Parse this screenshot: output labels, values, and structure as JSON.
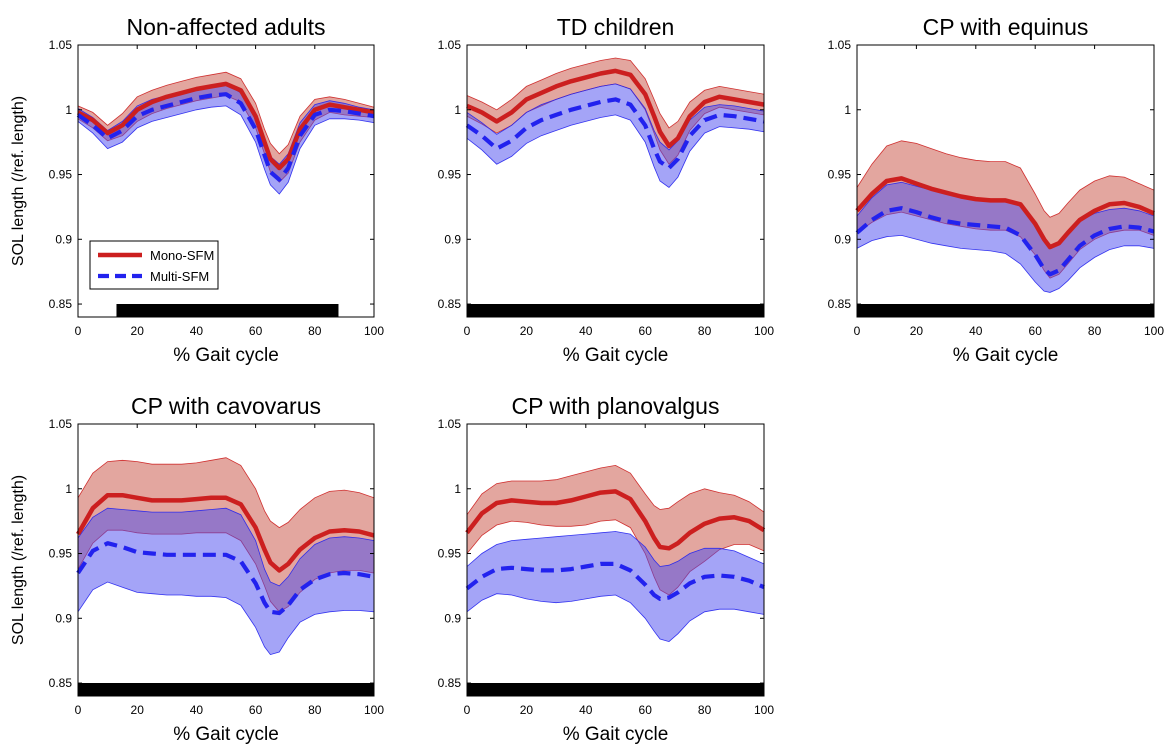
{
  "legend": {
    "mono_label": "Mono-SFM",
    "multi_label": "Multi-SFM"
  },
  "colors": {
    "mono_line": "#cc1f1f",
    "mono_band": "#c0392b",
    "multi_line": "#2222ee",
    "multi_band": "#4a4af0",
    "bar": "#000000"
  },
  "chart_data": [
    {
      "type": "line",
      "title": "Non-affected adults",
      "xlabel": "% Gait cycle",
      "ylabel": "SOL length (/ref. length)",
      "xlim": [
        0,
        100
      ],
      "ylim": [
        0.84,
        1.05
      ],
      "xticks": [
        "0",
        "20",
        "40",
        "60",
        "80",
        "100"
      ],
      "yticks": [
        "0.85",
        "0.9",
        "0.95",
        "1",
        "1.05"
      ],
      "legend_position": "lower-left",
      "bar": [
        13,
        88
      ],
      "x": [
        0,
        5,
        10,
        15,
        20,
        25,
        30,
        35,
        40,
        45,
        50,
        55,
        60,
        63,
        65,
        68,
        71,
        75,
        80,
        85,
        90,
        95,
        100
      ],
      "series": [
        {
          "name": "Mono-SFM",
          "style": "solid",
          "values": [
            0.998,
            0.992,
            0.982,
            0.988,
            1.0,
            1.006,
            1.01,
            1.013,
            1.016,
            1.018,
            1.02,
            1.015,
            0.995,
            0.975,
            0.962,
            0.955,
            0.962,
            0.985,
            1.0,
            1.004,
            1.002,
            1.0,
            0.998
          ],
          "upper": [
            1.003,
            0.998,
            0.988,
            0.997,
            1.01,
            1.015,
            1.019,
            1.022,
            1.025,
            1.027,
            1.029,
            1.024,
            1.005,
            0.985,
            0.974,
            0.966,
            0.973,
            0.995,
            1.008,
            1.01,
            1.008,
            1.005,
            1.002
          ],
          "lower": [
            0.993,
            0.986,
            0.976,
            0.98,
            0.991,
            0.997,
            1.001,
            1.004,
            1.007,
            1.009,
            1.011,
            1.006,
            0.986,
            0.966,
            0.952,
            0.944,
            0.951,
            0.975,
            0.992,
            0.998,
            0.996,
            0.995,
            0.994
          ]
        },
        {
          "name": "Multi-SFM",
          "style": "dashed",
          "values": [
            0.996,
            0.988,
            0.978,
            0.984,
            0.995,
            1.0,
            1.003,
            1.006,
            1.009,
            1.011,
            1.012,
            1.005,
            0.985,
            0.965,
            0.952,
            0.946,
            0.955,
            0.98,
            0.996,
            1.0,
            0.999,
            0.997,
            0.995
          ],
          "upper": [
            1.001,
            0.994,
            0.984,
            0.991,
            1.003,
            1.008,
            1.011,
            1.014,
            1.017,
            1.019,
            1.02,
            1.013,
            0.995,
            0.975,
            0.964,
            0.958,
            0.966,
            0.99,
            1.004,
            1.007,
            1.005,
            1.002,
            1.0
          ],
          "lower": [
            0.991,
            0.982,
            0.97,
            0.975,
            0.986,
            0.991,
            0.994,
            0.997,
            1.0,
            1.002,
            1.003,
            0.996,
            0.975,
            0.954,
            0.942,
            0.935,
            0.944,
            0.97,
            0.988,
            0.993,
            0.993,
            0.992,
            0.99
          ]
        }
      ]
    },
    {
      "type": "line",
      "title": "TD children",
      "xlabel": "% Gait cycle",
      "ylabel": "",
      "xlim": [
        0,
        100
      ],
      "ylim": [
        0.84,
        1.05
      ],
      "xticks": [
        "0",
        "20",
        "40",
        "60",
        "80",
        "100"
      ],
      "yticks": [
        "0.85",
        "0.9",
        "0.95",
        "1",
        "1.05"
      ],
      "bar": [
        0,
        100
      ],
      "x": [
        0,
        5,
        10,
        15,
        20,
        25,
        30,
        35,
        40,
        45,
        50,
        55,
        60,
        63,
        65,
        68,
        71,
        75,
        80,
        85,
        90,
        95,
        100
      ],
      "series": [
        {
          "name": "Mono-SFM",
          "style": "solid",
          "values": [
            1.003,
            0.998,
            0.991,
            0.998,
            1.008,
            1.013,
            1.018,
            1.022,
            1.025,
            1.028,
            1.03,
            1.027,
            1.012,
            0.995,
            0.983,
            0.972,
            0.978,
            0.995,
            1.006,
            1.01,
            1.008,
            1.006,
            1.004
          ],
          "upper": [
            1.011,
            1.006,
            1.0,
            1.008,
            1.018,
            1.023,
            1.028,
            1.032,
            1.035,
            1.038,
            1.04,
            1.038,
            1.024,
            1.008,
            0.997,
            0.986,
            0.991,
            1.006,
            1.015,
            1.018,
            1.016,
            1.014,
            1.012
          ],
          "lower": [
            0.995,
            0.989,
            0.982,
            0.988,
            0.998,
            1.003,
            1.008,
            1.012,
            1.015,
            1.018,
            1.02,
            1.016,
            1.0,
            0.982,
            0.969,
            0.958,
            0.965,
            0.984,
            0.997,
            1.002,
            1.0,
            0.998,
            0.996
          ]
        },
        {
          "name": "Multi-SFM",
          "style": "dashed",
          "values": [
            0.988,
            0.98,
            0.97,
            0.976,
            0.986,
            0.992,
            0.996,
            1.0,
            1.003,
            1.006,
            1.008,
            1.004,
            0.988,
            0.97,
            0.96,
            0.955,
            0.962,
            0.98,
            0.992,
            0.996,
            0.995,
            0.993,
            0.991
          ],
          "upper": [
            0.998,
            0.99,
            0.981,
            0.988,
            0.998,
            1.004,
            1.008,
            1.012,
            1.015,
            1.018,
            1.02,
            1.016,
            1.001,
            0.984,
            0.975,
            0.969,
            0.976,
            0.992,
            1.002,
            1.004,
            1.003,
            1.001,
            0.999
          ],
          "lower": [
            0.978,
            0.969,
            0.958,
            0.964,
            0.974,
            0.98,
            0.984,
            0.988,
            0.991,
            0.994,
            0.996,
            0.992,
            0.975,
            0.956,
            0.945,
            0.94,
            0.948,
            0.968,
            0.982,
            0.987,
            0.986,
            0.985,
            0.983
          ]
        }
      ]
    },
    {
      "type": "line",
      "title": "CP with equinus",
      "xlabel": "% Gait cycle",
      "ylabel": "",
      "xlim": [
        0,
        100
      ],
      "ylim": [
        0.84,
        1.05
      ],
      "xticks": [
        "0",
        "20",
        "40",
        "60",
        "80",
        "100"
      ],
      "yticks": [
        "0.85",
        "0.9",
        "0.95",
        "1",
        "1.05"
      ],
      "bar": [
        0,
        100
      ],
      "x": [
        0,
        5,
        10,
        15,
        20,
        25,
        30,
        35,
        40,
        45,
        50,
        55,
        60,
        63,
        65,
        68,
        71,
        75,
        80,
        85,
        90,
        95,
        100
      ],
      "series": [
        {
          "name": "Mono-SFM",
          "style": "solid",
          "values": [
            0.922,
            0.935,
            0.945,
            0.947,
            0.943,
            0.939,
            0.936,
            0.933,
            0.931,
            0.93,
            0.93,
            0.927,
            0.912,
            0.9,
            0.894,
            0.897,
            0.905,
            0.915,
            0.922,
            0.927,
            0.928,
            0.925,
            0.92
          ],
          "upper": [
            0.94,
            0.958,
            0.972,
            0.976,
            0.974,
            0.97,
            0.966,
            0.963,
            0.961,
            0.96,
            0.96,
            0.955,
            0.935,
            0.922,
            0.917,
            0.92,
            0.928,
            0.938,
            0.945,
            0.949,
            0.948,
            0.943,
            0.938
          ],
          "lower": [
            0.905,
            0.913,
            0.919,
            0.921,
            0.918,
            0.915,
            0.912,
            0.91,
            0.908,
            0.907,
            0.907,
            0.902,
            0.888,
            0.876,
            0.87,
            0.873,
            0.881,
            0.892,
            0.9,
            0.905,
            0.907,
            0.907,
            0.903
          ]
        },
        {
          "name": "Multi-SFM",
          "style": "dashed",
          "values": [
            0.905,
            0.915,
            0.922,
            0.924,
            0.921,
            0.917,
            0.914,
            0.912,
            0.911,
            0.91,
            0.909,
            0.903,
            0.888,
            0.877,
            0.873,
            0.876,
            0.884,
            0.895,
            0.903,
            0.908,
            0.91,
            0.909,
            0.906
          ],
          "upper": [
            0.918,
            0.932,
            0.942,
            0.944,
            0.941,
            0.938,
            0.935,
            0.933,
            0.932,
            0.931,
            0.931,
            0.926,
            0.91,
            0.898,
            0.893,
            0.896,
            0.904,
            0.914,
            0.92,
            0.923,
            0.924,
            0.922,
            0.918
          ],
          "lower": [
            0.893,
            0.899,
            0.902,
            0.903,
            0.9,
            0.897,
            0.895,
            0.893,
            0.892,
            0.891,
            0.889,
            0.881,
            0.867,
            0.86,
            0.859,
            0.862,
            0.868,
            0.878,
            0.886,
            0.892,
            0.895,
            0.895,
            0.893
          ]
        }
      ]
    },
    {
      "type": "line",
      "title": "CP with cavovarus",
      "xlabel": "% Gait cycle",
      "ylabel": "SOL length (/ref. length)",
      "xlim": [
        0,
        100
      ],
      "ylim": [
        0.84,
        1.05
      ],
      "xticks": [
        "0",
        "20",
        "40",
        "60",
        "80",
        "100"
      ],
      "yticks": [
        "0.85",
        "0.9",
        "0.95",
        "1",
        "1.05"
      ],
      "bar": [
        0,
        100
      ],
      "x": [
        0,
        5,
        10,
        15,
        20,
        25,
        30,
        35,
        40,
        45,
        50,
        55,
        60,
        63,
        65,
        68,
        71,
        75,
        80,
        85,
        90,
        95,
        100
      ],
      "series": [
        {
          "name": "Mono-SFM",
          "style": "solid",
          "values": [
            0.965,
            0.985,
            0.995,
            0.995,
            0.993,
            0.991,
            0.991,
            0.991,
            0.992,
            0.993,
            0.993,
            0.988,
            0.97,
            0.953,
            0.943,
            0.937,
            0.942,
            0.953,
            0.962,
            0.967,
            0.968,
            0.967,
            0.964
          ],
          "upper": [
            0.993,
            1.012,
            1.021,
            1.022,
            1.021,
            1.019,
            1.019,
            1.019,
            1.02,
            1.022,
            1.024,
            1.018,
            1.0,
            0.983,
            0.975,
            0.97,
            0.974,
            0.984,
            0.993,
            0.998,
            0.999,
            0.997,
            0.993
          ],
          "lower": [
            0.938,
            0.958,
            0.968,
            0.968,
            0.966,
            0.965,
            0.965,
            0.965,
            0.966,
            0.966,
            0.966,
            0.96,
            0.942,
            0.925,
            0.913,
            0.905,
            0.909,
            0.92,
            0.93,
            0.935,
            0.937,
            0.937,
            0.935
          ]
        },
        {
          "name": "Multi-SFM",
          "style": "dashed",
          "values": [
            0.935,
            0.952,
            0.958,
            0.955,
            0.951,
            0.95,
            0.949,
            0.949,
            0.949,
            0.949,
            0.949,
            0.944,
            0.927,
            0.912,
            0.905,
            0.904,
            0.91,
            0.922,
            0.93,
            0.934,
            0.935,
            0.934,
            0.932
          ],
          "upper": [
            0.962,
            0.978,
            0.985,
            0.984,
            0.983,
            0.982,
            0.982,
            0.982,
            0.983,
            0.984,
            0.985,
            0.98,
            0.96,
            0.938,
            0.928,
            0.925,
            0.932,
            0.946,
            0.957,
            0.962,
            0.963,
            0.962,
            0.96
          ],
          "lower": [
            0.905,
            0.922,
            0.928,
            0.924,
            0.92,
            0.919,
            0.918,
            0.918,
            0.917,
            0.917,
            0.916,
            0.91,
            0.893,
            0.878,
            0.872,
            0.874,
            0.885,
            0.897,
            0.903,
            0.905,
            0.906,
            0.906,
            0.905
          ]
        }
      ]
    },
    {
      "type": "line",
      "title": "CP with planovalgus",
      "xlabel": "% Gait cycle",
      "ylabel": "",
      "xlim": [
        0,
        100
      ],
      "ylim": [
        0.84,
        1.05
      ],
      "xticks": [
        "0",
        "20",
        "40",
        "60",
        "80",
        "100"
      ],
      "yticks": [
        "0.85",
        "0.9",
        "0.95",
        "1",
        "1.05"
      ],
      "bar": [
        0,
        100
      ],
      "x": [
        0,
        5,
        10,
        15,
        20,
        25,
        30,
        35,
        40,
        45,
        50,
        55,
        60,
        63,
        65,
        68,
        71,
        75,
        80,
        85,
        90,
        95,
        100
      ],
      "series": [
        {
          "name": "Mono-SFM",
          "style": "solid",
          "values": [
            0.966,
            0.981,
            0.989,
            0.991,
            0.99,
            0.989,
            0.989,
            0.991,
            0.994,
            0.997,
            0.998,
            0.992,
            0.975,
            0.962,
            0.955,
            0.954,
            0.958,
            0.966,
            0.973,
            0.977,
            0.978,
            0.975,
            0.968
          ],
          "upper": [
            0.98,
            0.996,
            1.004,
            1.006,
            1.006,
            1.006,
            1.007,
            1.01,
            1.013,
            1.016,
            1.018,
            1.012,
            0.996,
            0.987,
            0.984,
            0.985,
            0.99,
            0.996,
            1.0,
            0.997,
            0.995,
            0.99,
            0.982
          ],
          "lower": [
            0.95,
            0.964,
            0.972,
            0.975,
            0.974,
            0.972,
            0.971,
            0.971,
            0.972,
            0.975,
            0.976,
            0.97,
            0.95,
            0.932,
            0.922,
            0.918,
            0.924,
            0.936,
            0.944,
            0.953,
            0.957,
            0.957,
            0.952
          ]
        },
        {
          "name": "Multi-SFM",
          "style": "dashed",
          "values": [
            0.923,
            0.932,
            0.938,
            0.939,
            0.938,
            0.937,
            0.937,
            0.938,
            0.94,
            0.942,
            0.942,
            0.937,
            0.926,
            0.918,
            0.915,
            0.916,
            0.92,
            0.927,
            0.932,
            0.933,
            0.932,
            0.929,
            0.924
          ],
          "upper": [
            0.94,
            0.95,
            0.957,
            0.96,
            0.961,
            0.962,
            0.963,
            0.964,
            0.965,
            0.966,
            0.967,
            0.965,
            0.955,
            0.945,
            0.94,
            0.941,
            0.944,
            0.95,
            0.954,
            0.954,
            0.952,
            0.947,
            0.942
          ],
          "lower": [
            0.905,
            0.914,
            0.919,
            0.918,
            0.915,
            0.913,
            0.912,
            0.913,
            0.915,
            0.917,
            0.918,
            0.912,
            0.9,
            0.89,
            0.884,
            0.882,
            0.888,
            0.898,
            0.905,
            0.907,
            0.907,
            0.905,
            0.903
          ]
        }
      ]
    }
  ]
}
